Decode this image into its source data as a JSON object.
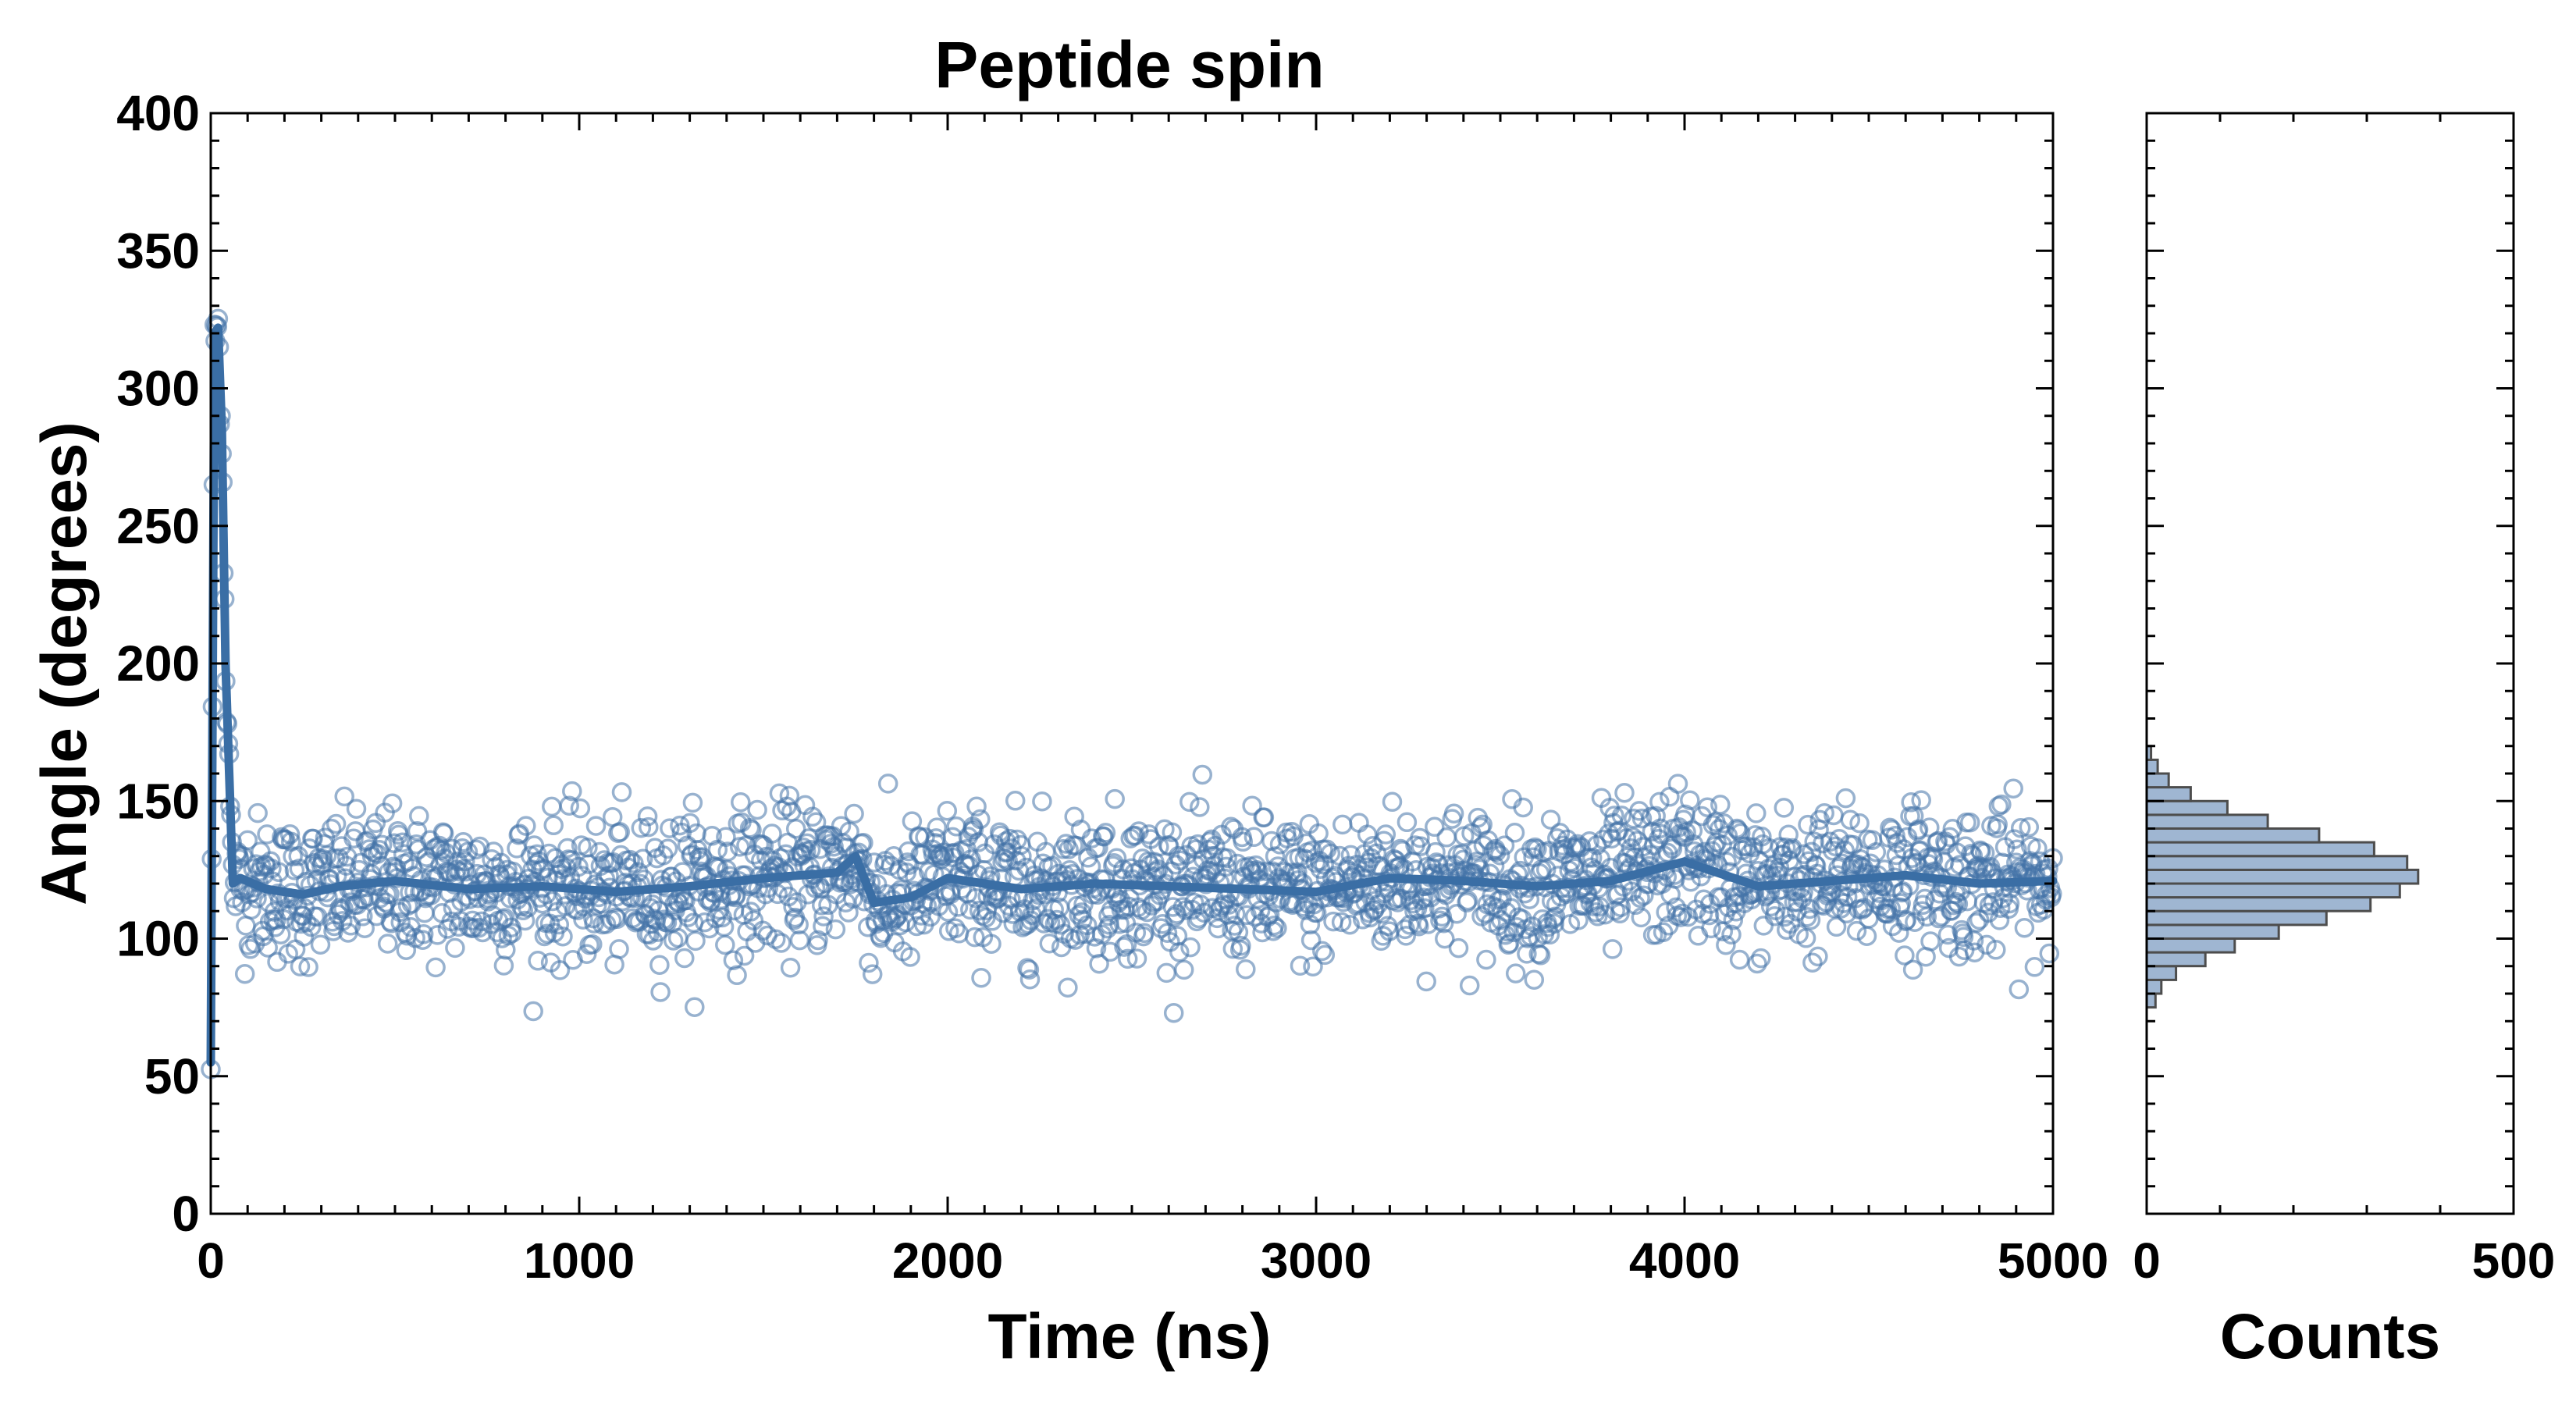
{
  "chart_data": [
    {
      "type": "scatter",
      "title": "Peptide spin",
      "xlabel": "Time (ns)",
      "ylabel": "Angle (degrees)",
      "xlim": [
        0,
        5000
      ],
      "ylim": [
        0,
        400
      ],
      "x_ticks": [
        0,
        1000,
        2000,
        3000,
        4000,
        5000
      ],
      "y_ticks": [
        0,
        50,
        100,
        150,
        200,
        250,
        300,
        350,
        400
      ],
      "grid": false,
      "scatter_color": "#4472a8",
      "scatter_style": "open circles, semi-transparent",
      "n_points_approx": 2000,
      "scatter_summary": {
        "initial_segment": "angle starts near 30–60°, jumps to ~320° within the first ~20 ns, then falls to ~120° by ~70 ns",
        "steady_state_mean": 120,
        "steady_state_spread": [
          73,
          165
        ]
      },
      "series": [
        {
          "kind": "line",
          "color": "#3a6ea5",
          "x": [
            0,
            10,
            20,
            30,
            40,
            60,
            80,
            150,
            250,
            350,
            500,
            700,
            900,
            1100,
            1300,
            1500,
            1700,
            1750,
            1800,
            1900,
            2000,
            2200,
            2400,
            2600,
            2800,
            3000,
            3200,
            3400,
            3600,
            3800,
            4000,
            4200,
            4400,
            4600,
            4800,
            5000
          ],
          "y": [
            55,
            320,
            322,
            285,
            200,
            120,
            122,
            118,
            116,
            119,
            121,
            118,
            119,
            117,
            119,
            122,
            124,
            130,
            113,
            115,
            122,
            118,
            120,
            119,
            118,
            117,
            122,
            121,
            119,
            121,
            128,
            119,
            121,
            123,
            120,
            121
          ]
        }
      ]
    },
    {
      "type": "bar",
      "orientation": "horizontal",
      "xlabel": "Counts",
      "xlim": [
        0,
        500
      ],
      "x_ticks": [
        0,
        500
      ],
      "ylim": [
        0,
        400
      ],
      "bar_color": "#9fb6d2",
      "bar_edge_color": "#4d4d4d",
      "bins": [
        {
          "range": [
            75,
            80
          ],
          "count": 12
        },
        {
          "range": [
            80,
            85
          ],
          "count": 20
        },
        {
          "range": [
            85,
            90
          ],
          "count": 40
        },
        {
          "range": [
            90,
            95
          ],
          "count": 80
        },
        {
          "range": [
            95,
            100
          ],
          "count": 120
        },
        {
          "range": [
            100,
            105
          ],
          "count": 180
        },
        {
          "range": [
            105,
            110
          ],
          "count": 245
        },
        {
          "range": [
            110,
            115
          ],
          "count": 305
        },
        {
          "range": [
            115,
            120
          ],
          "count": 345
        },
        {
          "range": [
            120,
            125
          ],
          "count": 370
        },
        {
          "range": [
            125,
            130
          ],
          "count": 355
        },
        {
          "range": [
            130,
            135
          ],
          "count": 310
        },
        {
          "range": [
            135,
            140
          ],
          "count": 235
        },
        {
          "range": [
            140,
            145
          ],
          "count": 165
        },
        {
          "range": [
            145,
            150
          ],
          "count": 110
        },
        {
          "range": [
            150,
            155
          ],
          "count": 60
        },
        {
          "range": [
            155,
            160
          ],
          "count": 30
        },
        {
          "range": [
            160,
            165
          ],
          "count": 15
        },
        {
          "range": [
            165,
            170
          ],
          "count": 6
        }
      ]
    }
  ]
}
